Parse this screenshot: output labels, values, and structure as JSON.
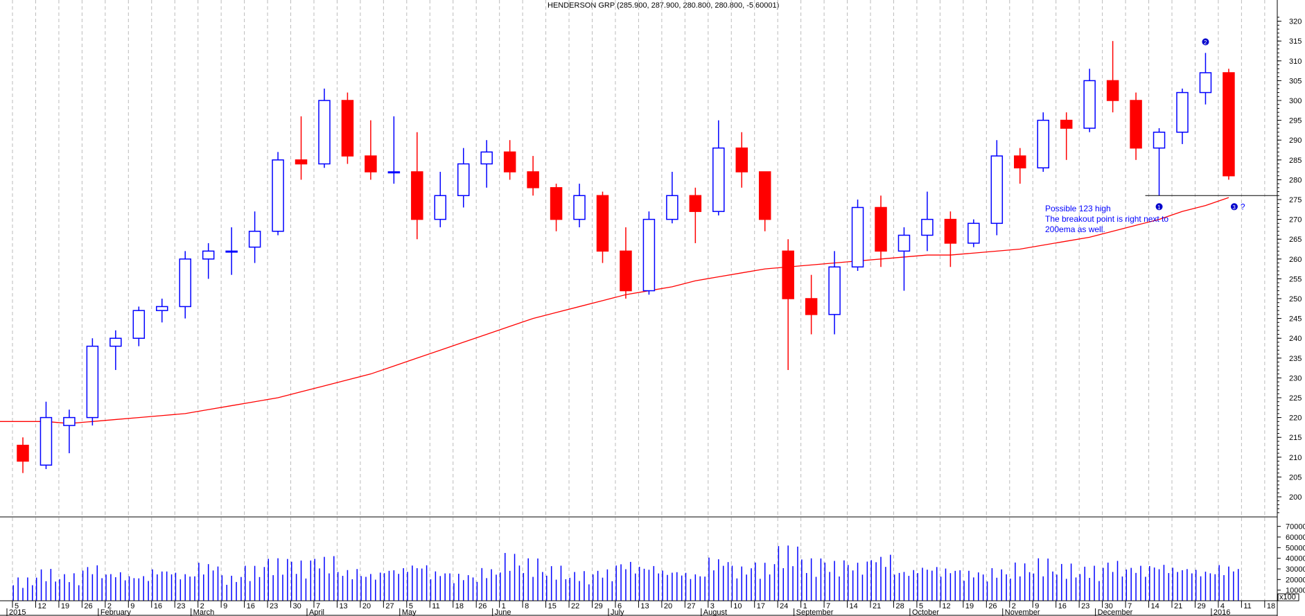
{
  "chart_data": {
    "type": "candlestick",
    "title": "HENDERSON GRP (285.900, 287.900, 280.800, 280.800, -5.60001)",
    "period": "weekly (approximated from daily chart)",
    "price_axis": {
      "range": [
        195,
        322
      ],
      "ticks": [
        200,
        205,
        210,
        215,
        220,
        225,
        230,
        235,
        240,
        245,
        250,
        255,
        260,
        265,
        270,
        275,
        280,
        285,
        290,
        295,
        300,
        305,
        310,
        315,
        320
      ]
    },
    "volume_axis": {
      "range": [
        0,
        75000
      ],
      "ticks": [
        "10000",
        "20000",
        "30000",
        "40000",
        "50000",
        "60000",
        "70000"
      ],
      "unit_label": "x100"
    },
    "x_ticks": [
      "5",
      "12",
      "19",
      "26",
      "2",
      "9",
      "16",
      "23",
      "2",
      "9",
      "16",
      "23",
      "30",
      "7",
      "13",
      "20",
      "27",
      "5",
      "11",
      "18",
      "26",
      "1",
      "8",
      "15",
      "22",
      "29",
      "6",
      "13",
      "20",
      "27",
      "3",
      "10",
      "17",
      "24",
      "1",
      "7",
      "14",
      "21",
      "28",
      "5",
      "12",
      "19",
      "26",
      "2",
      "9",
      "16",
      "23",
      "30",
      "7",
      "14",
      "21",
      "29",
      "4",
      "11",
      "18"
    ],
    "months": [
      {
        "label": "2015",
        "week": 0
      },
      {
        "label": "February",
        "week": 4
      },
      {
        "label": "March",
        "week": 8
      },
      {
        "label": "April",
        "week": 13
      },
      {
        "label": "May",
        "week": 17
      },
      {
        "label": "June",
        "week": 21
      },
      {
        "label": "July",
        "week": 26
      },
      {
        "label": "August",
        "week": 30
      },
      {
        "label": "September",
        "week": 34
      },
      {
        "label": "October",
        "week": 39
      },
      {
        "label": "November",
        "week": 43
      },
      {
        "label": "December",
        "week": 47
      },
      {
        "label": "2016",
        "week": 52
      }
    ],
    "ohlc": [
      [
        213,
        215,
        206,
        209
      ],
      [
        208,
        224,
        207,
        220
      ],
      [
        218,
        222,
        211,
        220
      ],
      [
        220,
        240,
        218,
        238
      ],
      [
        238,
        242,
        232,
        240
      ],
      [
        240,
        248,
        238,
        247
      ],
      [
        247,
        250,
        244,
        248
      ],
      [
        248,
        262,
        245,
        260
      ],
      [
        260,
        264,
        255,
        262
      ],
      [
        262,
        268,
        256,
        262
      ],
      [
        263,
        272,
        259,
        267
      ],
      [
        267,
        287,
        266,
        285
      ],
      [
        285,
        296,
        280,
        284
      ],
      [
        284,
        303,
        283,
        300
      ],
      [
        300,
        302,
        284,
        286
      ],
      [
        286,
        295,
        280,
        282
      ],
      [
        282,
        296,
        279,
        282
      ],
      [
        282,
        292,
        265,
        270
      ],
      [
        270,
        282,
        268,
        276
      ],
      [
        276,
        288,
        273,
        284
      ],
      [
        284,
        290,
        278,
        287
      ],
      [
        287,
        290,
        280,
        282
      ],
      [
        282,
        286,
        276,
        278
      ],
      [
        278,
        279,
        267,
        270
      ],
      [
        270,
        279,
        268,
        276
      ],
      [
        276,
        277,
        259,
        262
      ],
      [
        262,
        268,
        250,
        252
      ],
      [
        252,
        272,
        251,
        270
      ],
      [
        270,
        282,
        269,
        276
      ],
      [
        276,
        278,
        264,
        272
      ],
      [
        272,
        295,
        271,
        288
      ],
      [
        288,
        292,
        278,
        282
      ],
      [
        282,
        282,
        267,
        270
      ],
      [
        262,
        265,
        232,
        250
      ],
      [
        250,
        256,
        241,
        246
      ],
      [
        246,
        262,
        241,
        258
      ],
      [
        258,
        275,
        257,
        273
      ],
      [
        273,
        276,
        258,
        262
      ],
      [
        262,
        268,
        252,
        266
      ],
      [
        266,
        277,
        262,
        270
      ],
      [
        270,
        272,
        258,
        264
      ],
      [
        264,
        270,
        263,
        269
      ],
      [
        269,
        290,
        266,
        286
      ],
      [
        286,
        288,
        279,
        283
      ],
      [
        283,
        297,
        282,
        295
      ],
      [
        295,
        297,
        285,
        293
      ],
      [
        293,
        308,
        292,
        305
      ],
      [
        305,
        315,
        297,
        300
      ],
      [
        300,
        302,
        285,
        288
      ],
      [
        288,
        293,
        276,
        292
      ],
      [
        292,
        303,
        289,
        302
      ],
      [
        302,
        312,
        299,
        307
      ],
      [
        307,
        308,
        280,
        281
      ]
    ],
    "volume": [
      22000,
      30000,
      26000,
      34000,
      28000,
      25000,
      31000,
      27000,
      36000,
      24000,
      33000,
      40000,
      38000,
      42000,
      30000,
      27000,
      32000,
      36000,
      29000,
      26000,
      31000,
      45000,
      40000,
      33000,
      28000,
      30000,
      38000,
      35000,
      30000,
      27000,
      41000,
      33000,
      36000,
      52000,
      40000,
      38000,
      37000,
      44000,
      30000,
      34000,
      32000,
      29000,
      31000,
      36000,
      40000,
      35000,
      33000,
      38000,
      34000,
      36000,
      33000,
      30000,
      34000
    ],
    "ema200": {
      "label": "200ema",
      "values": [
        219,
        219,
        218.5,
        219,
        219.5,
        220,
        220.5,
        221,
        222,
        223,
        224,
        225,
        226.5,
        228,
        229.5,
        231,
        233,
        235,
        237,
        239,
        241,
        243,
        245,
        246.5,
        248,
        249.5,
        251,
        252,
        253,
        254.5,
        255.5,
        256.5,
        257.5,
        258,
        258.5,
        259,
        259.5,
        260,
        260.5,
        261,
        261,
        261.5,
        262,
        262.5,
        263.5,
        264.5,
        265.5,
        267,
        268.5,
        270,
        272,
        273.5,
        275.5
      ]
    },
    "breakout_line": {
      "price": 276,
      "from_week": 49
    },
    "markers": [
      {
        "label": "1",
        "week": 49,
        "price": 276,
        "position": "below"
      },
      {
        "label": "2",
        "week": 51,
        "price": 312,
        "position": "above"
      },
      {
        "label": "3 ?",
        "week": 52,
        "price": 276,
        "position": "below"
      }
    ],
    "annotation": [
      "Possible 123 high",
      "The breakout point is right next to",
      "200ema as well."
    ],
    "colors": {
      "up": "#0000ff",
      "down": "#ff0000",
      "ema": "#ff0000",
      "volume": "#0000ff",
      "grid": "#bbbbbb",
      "annotation": "#0000ff"
    },
    "grid": "vertical dashed"
  }
}
